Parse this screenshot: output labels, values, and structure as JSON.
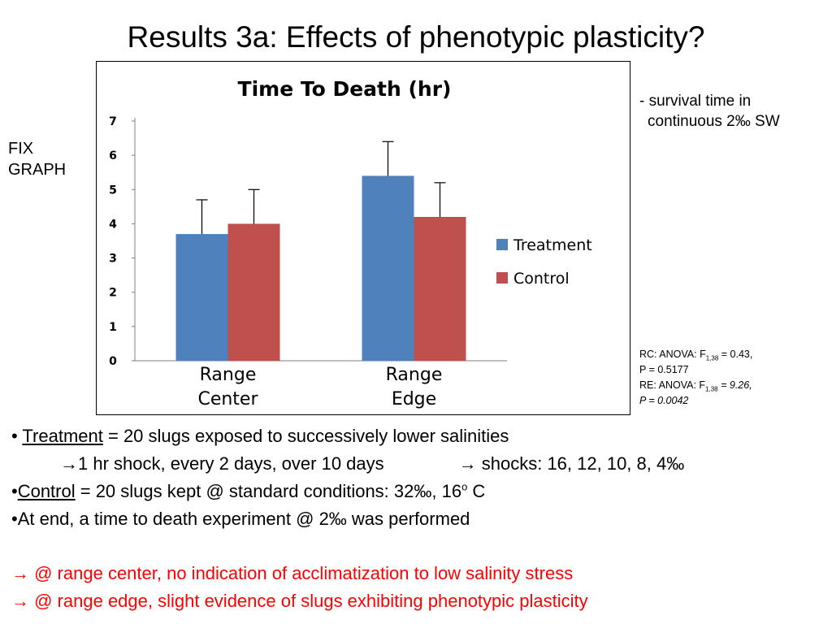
{
  "slide_title": "Results 3a: Effects of phenotypic plasticity?",
  "fix_note": [
    "FIX",
    "GRAPH"
  ],
  "side_note": [
    "- survival time in",
    "continuous 2‰ SW"
  ],
  "stats": {
    "rc_prefix": "RC: ANOVA: F",
    "rc_sub": "1,38",
    "rc_suffix": " = 0.43,",
    "rc_p": "P = 0.5177",
    "re_prefix": "RE: ANOVA: F",
    "re_sub": "1,38",
    "re_suffix": " = 9.26,",
    "re_p": "P = 0.0042"
  },
  "bullets": {
    "b1_dot": "• ",
    "b1_term": "Treatment",
    "b1_rest": " = 20 slugs exposed to successively lower salinities",
    "b2_a": "→1 hr shock, every 2 days, over 10 days",
    "b2_b": "→ shocks: 16, 12, 10, 8, 4‰",
    "b3_dot": "•",
    "b3_term": "Control",
    "b3_rest": " = 20 slugs kept @ standard conditions: 32‰, 16",
    "b3_sup": "o",
    "b3_end": " C",
    "b4": "•At end, a time to death experiment @ 2‰ was performed",
    "c1": "→ @ range center, no indication of acclimatization to low salinity stress",
    "c2": "→ @ range edge, slight evidence of slugs exhibiting phenotypic plasticity"
  },
  "colors": {
    "treatment": "#4f81bd",
    "control": "#c0504d",
    "conclusion_text": "#ff0000"
  },
  "chart_data": {
    "type": "bar",
    "title": "Time To Death (hr)",
    "categories": [
      "Range Center",
      "Range Edge"
    ],
    "category_lines": [
      [
        "Range",
        "Center"
      ],
      [
        "Range",
        "Edge"
      ]
    ],
    "series": [
      {
        "name": "Treatment",
        "color": "#4f81bd",
        "values": [
          3.7,
          5.4
        ],
        "error": [
          1.0,
          1.0
        ]
      },
      {
        "name": "Control",
        "color": "#c0504d",
        "values": [
          4.0,
          4.2
        ],
        "error": [
          1.0,
          1.0
        ]
      }
    ],
    "ylim": [
      0,
      7
    ],
    "yticks": [
      0,
      1,
      2,
      3,
      4,
      5,
      6,
      7
    ],
    "error_bars": true,
    "grid": false,
    "legend_position": "right"
  }
}
